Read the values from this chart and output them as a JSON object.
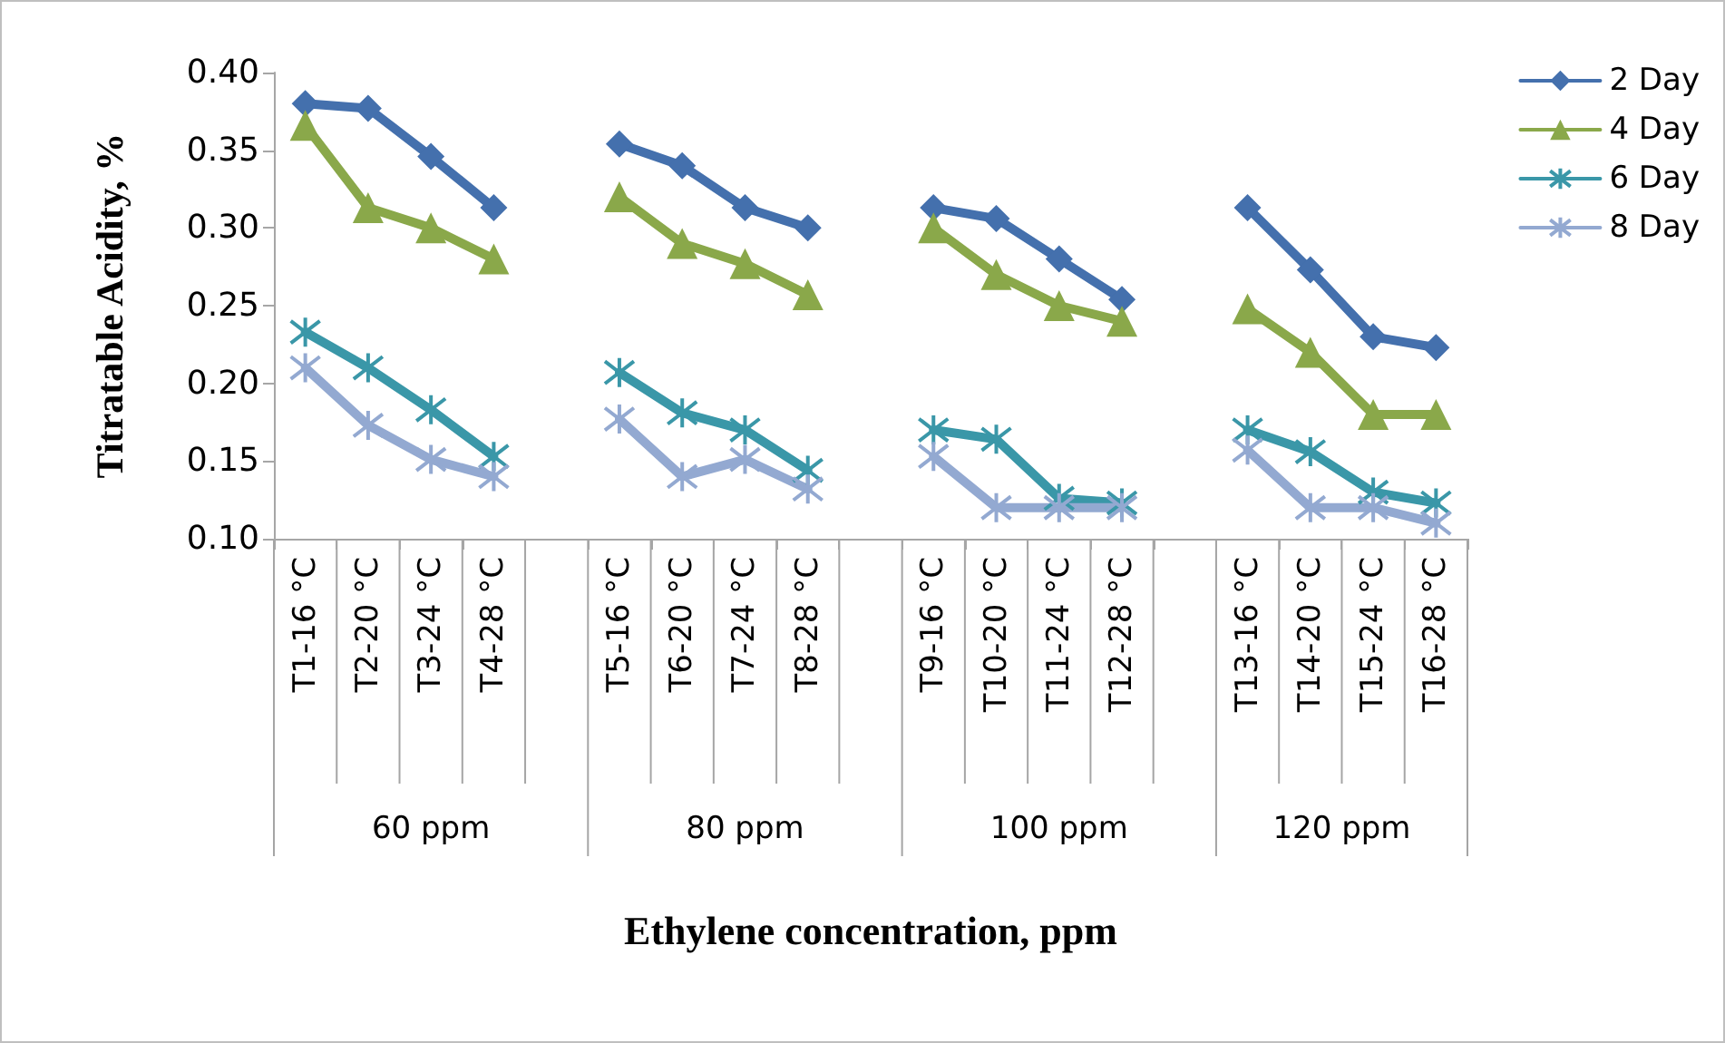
{
  "chart_data": {
    "type": "line",
    "xlabel": "Ethylene concentration, ppm",
    "ylabel": "Titratable Acidity, %",
    "categories": [
      "T1-16 °C",
      "T2-20 °C",
      "T3-24 °C",
      "T4-28 °C",
      null,
      "T5-16 °C",
      "T6-20 °C",
      "T7-24 °C",
      "T8-28 °C",
      null,
      "T9-16 °C",
      "T10-20 °C",
      "T11-24 °C",
      "T12-28 °C",
      null,
      "T13-16 °C",
      "T14-20 °C",
      "T15-24 °C",
      "T16-28 °C"
    ],
    "annotations": [
      "60 ppm",
      "80 ppm",
      "100 ppm",
      "120 ppm"
    ],
    "series": [
      {
        "name": "2 Day",
        "color": "#4470ad",
        "marker": "diamond",
        "values": [
          0.38,
          0.377,
          0.346,
          0.313,
          null,
          0.354,
          0.34,
          0.313,
          0.3,
          null,
          0.313,
          0.306,
          0.28,
          0.254,
          null,
          0.313,
          0.273,
          0.23,
          0.223
        ]
      },
      {
        "name": "4 Day",
        "color": "#8aa84a",
        "marker": "triangle",
        "values": [
          0.366,
          0.313,
          0.3,
          0.28,
          null,
          0.32,
          0.29,
          0.277,
          0.257,
          null,
          0.3,
          0.27,
          0.25,
          0.24,
          null,
          0.248,
          0.22,
          0.18,
          0.18
        ]
      },
      {
        "name": "6 Day",
        "color": "#3a97a8",
        "marker": "cross",
        "values": [
          0.233,
          0.21,
          0.183,
          0.153,
          null,
          0.207,
          0.181,
          0.17,
          0.144,
          null,
          0.17,
          0.164,
          0.126,
          0.123,
          null,
          0.17,
          0.156,
          0.13,
          0.123
        ]
      },
      {
        "name": "8 Day",
        "color": "#93a9d1",
        "marker": "cross",
        "values": [
          0.21,
          0.173,
          0.151,
          0.14,
          null,
          0.177,
          0.14,
          0.151,
          0.132,
          null,
          0.153,
          0.12,
          0.12,
          0.12,
          null,
          0.157,
          0.12,
          0.12,
          0.11
        ]
      }
    ],
    "ylim": [
      0.1,
      0.4
    ],
    "yticks": [
      {
        "value": 0.1,
        "label": "0.10"
      },
      {
        "value": 0.15,
        "label": "0.15"
      },
      {
        "value": 0.2,
        "label": "0.20"
      },
      {
        "value": 0.25,
        "label": "0.25"
      },
      {
        "value": 0.3,
        "label": "0.30"
      },
      {
        "value": 0.35,
        "label": "0.35"
      },
      {
        "value": 0.4,
        "label": "0.40"
      }
    ],
    "grid": false,
    "legend": "top right",
    "line_style": "solid"
  }
}
